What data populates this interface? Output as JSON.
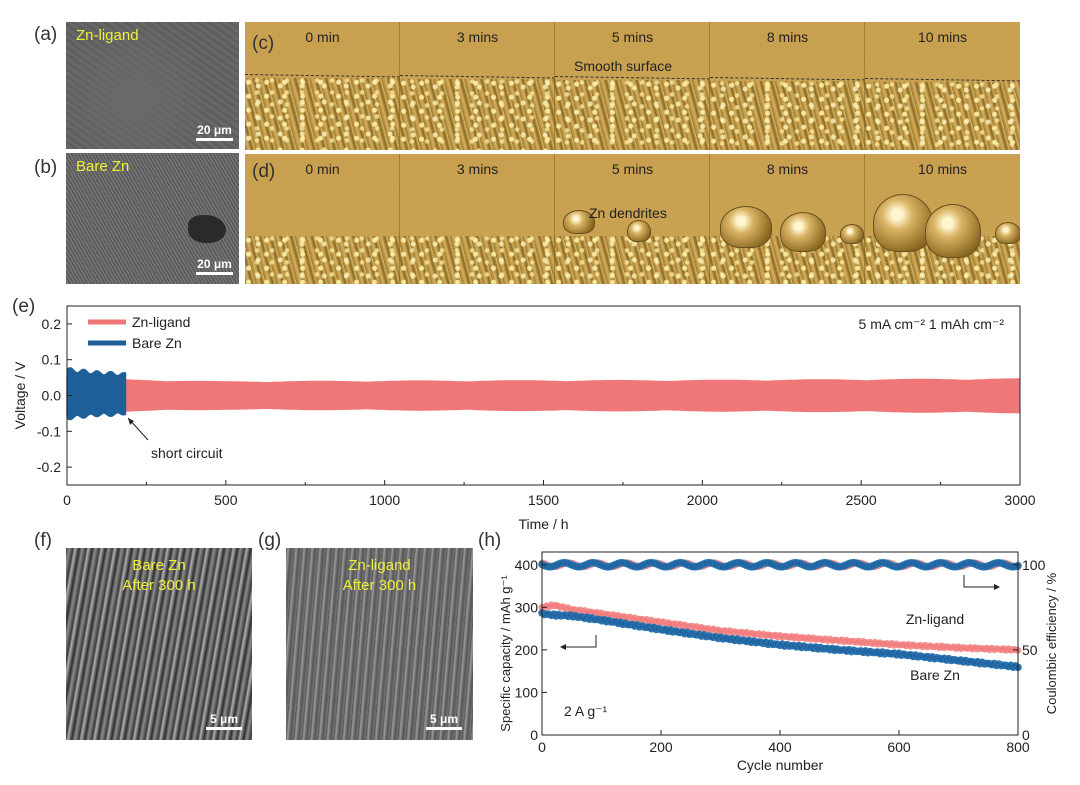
{
  "panels": {
    "a": {
      "label": "(a)",
      "tag": "Zn-ligand",
      "scale": "20 μm"
    },
    "b": {
      "label": "(b)",
      "tag": "Bare Zn",
      "scale": "20 μm"
    },
    "c": {
      "label": "(c)",
      "times": [
        "0 min",
        "3 mins",
        "5 mins",
        "8 mins",
        "10 mins"
      ],
      "annotation": "Smooth surface"
    },
    "d": {
      "label": "(d)",
      "times": [
        "0 min",
        "3 mins",
        "5 mins",
        "8 mins",
        "10 mins"
      ],
      "annotation": "Zn dendrites"
    },
    "e": {
      "label": "(e)"
    },
    "f": {
      "label": "(f)",
      "tag_line1": "Bare Zn",
      "tag_line2": "After 300 h",
      "scale": "5 μm"
    },
    "g": {
      "label": "(g)",
      "tag_line1": "Zn-ligand",
      "tag_line2": "After 300 h",
      "scale": "5 μm"
    },
    "h": {
      "label": "(h)"
    }
  },
  "chart_data": [
    {
      "type": "line",
      "panel": "e",
      "xlabel": "Time / h",
      "ylabel": "Voltage / V",
      "xlim": [
        0,
        3000
      ],
      "ylim": [
        -0.25,
        0.25
      ],
      "xticks": [
        0,
        500,
        1000,
        1500,
        2000,
        2500,
        3000
      ],
      "yticks": [
        -0.2,
        -0.1,
        0.0,
        0.1,
        0.2
      ],
      "ytick_labels": [
        "-0.2",
        "-0.1",
        "0.0",
        "0.1",
        "0.2"
      ],
      "conditions": "5 mA cm⁻²   1 mAh cm⁻²",
      "annotation": "short circuit",
      "series": [
        {
          "name": "Zn-ligand",
          "color": "#f07777",
          "x": [
            0,
            100,
            200,
            500,
            1000,
            1500,
            2000,
            2500,
            3000
          ],
          "upper": [
            0.06,
            0.05,
            0.045,
            0.04,
            0.042,
            0.043,
            0.044,
            0.046,
            0.048
          ],
          "lower": [
            -0.06,
            -0.05,
            -0.045,
            -0.04,
            -0.042,
            -0.044,
            -0.045,
            -0.047,
            -0.05
          ]
        },
        {
          "name": "Bare Zn",
          "color": "#1f5f99",
          "x": [
            0,
            50,
            100,
            150,
            185
          ],
          "upper": [
            0.08,
            0.075,
            0.07,
            0.068,
            0.065
          ],
          "lower": [
            -0.07,
            -0.065,
            -0.06,
            -0.06,
            -0.055
          ]
        }
      ]
    },
    {
      "type": "scatter",
      "panel": "h",
      "xlabel": "Cycle number",
      "ylabel_left": "Specific capacity / mAh g⁻¹",
      "ylabel_right": "Coulombic efficiency / %",
      "xlim": [
        0,
        800
      ],
      "ylim_left": [
        0,
        430
      ],
      "ylim_right": [
        0,
        107.5
      ],
      "xticks": [
        0,
        200,
        400,
        600,
        800
      ],
      "yticks_left": [
        0,
        100,
        200,
        300,
        400
      ],
      "yticks_right": [
        0,
        50,
        100
      ],
      "current": "2 A g⁻¹",
      "series": [
        {
          "name": "Zn-ligand",
          "axis": "left",
          "color": "#f07777",
          "x": [
            0,
            20,
            50,
            100,
            200,
            300,
            400,
            500,
            600,
            700,
            800
          ],
          "values": [
            300,
            305,
            295,
            285,
            265,
            245,
            232,
            222,
            212,
            205,
            200
          ]
        },
        {
          "name": "Bare Zn",
          "axis": "left",
          "color": "#1f5f99",
          "x": [
            0,
            20,
            50,
            100,
            200,
            300,
            400,
            500,
            600,
            700,
            800
          ],
          "values": [
            285,
            282,
            280,
            270,
            248,
            228,
            212,
            200,
            190,
            175,
            160
          ]
        },
        {
          "name": "Zn-ligand CE",
          "axis": "right",
          "color": "#f07777",
          "x": [
            0,
            100,
            200,
            300,
            400,
            500,
            600,
            700,
            800
          ],
          "values": [
            100,
            100,
            100,
            100,
            100,
            100,
            100,
            100,
            100
          ]
        },
        {
          "name": "Bare Zn CE",
          "axis": "right",
          "color": "#1f5f99",
          "x": [
            0,
            100,
            200,
            300,
            400,
            500,
            600,
            700,
            800
          ],
          "values": [
            100,
            100,
            100,
            100,
            100,
            100,
            100,
            100,
            100
          ]
        }
      ]
    }
  ]
}
